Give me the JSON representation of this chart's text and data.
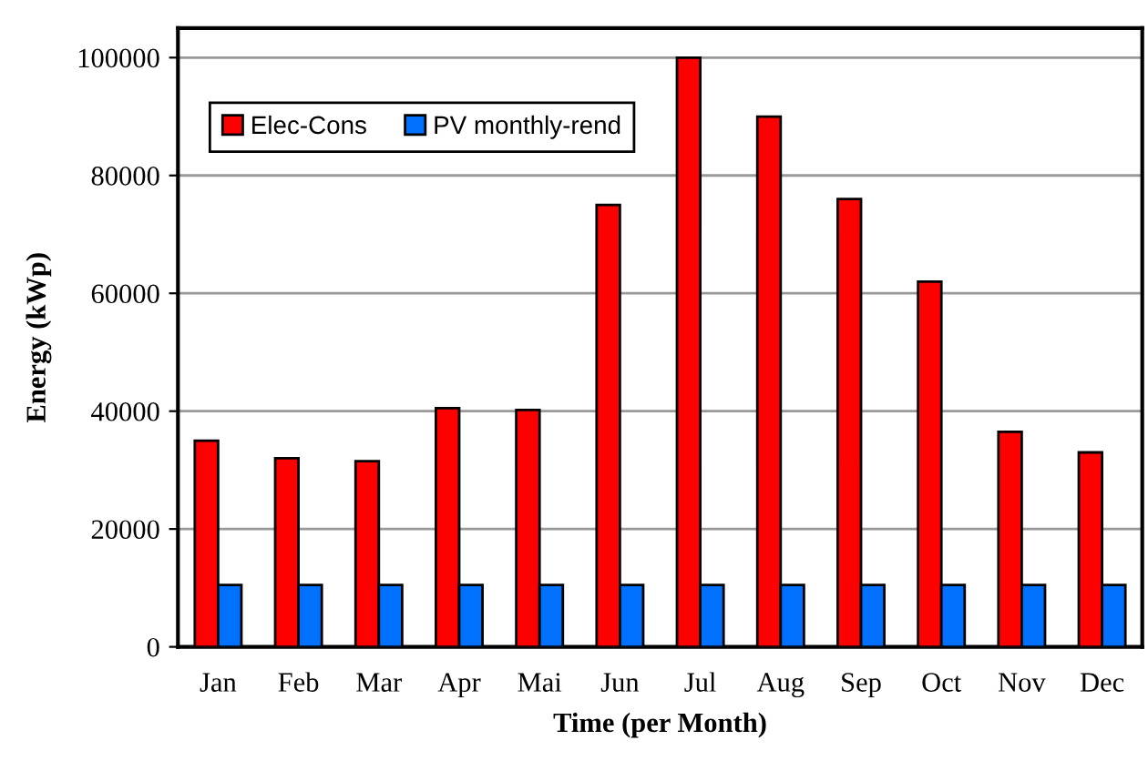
{
  "chart_data": {
    "type": "bar",
    "xlabel": "Time (per Month)",
    "ylabel": "Energy (kWp)",
    "categories": [
      "Jan",
      "Feb",
      "Mar",
      "Apr",
      "Mai",
      "Jun",
      "Jul",
      "Aug",
      "Sep",
      "Oct",
      "Nov",
      "Dec"
    ],
    "series": [
      {
        "name": "Elec-Cons",
        "color": "#ff0000",
        "values": [
          35000,
          32000,
          31500,
          40500,
          40200,
          75000,
          100000,
          90000,
          76000,
          62000,
          36500,
          33000
        ]
      },
      {
        "name": "PV monthly-rend",
        "color": "#0070ff",
        "values": [
          10500,
          10500,
          10500,
          10500,
          10500,
          10500,
          10500,
          10500,
          10500,
          10500,
          10500,
          10500
        ]
      }
    ],
    "ylim": [
      0,
      105000
    ],
    "yticks": [
      0,
      20000,
      40000,
      60000,
      80000,
      100000
    ],
    "grid": "y",
    "legend": "top left"
  }
}
